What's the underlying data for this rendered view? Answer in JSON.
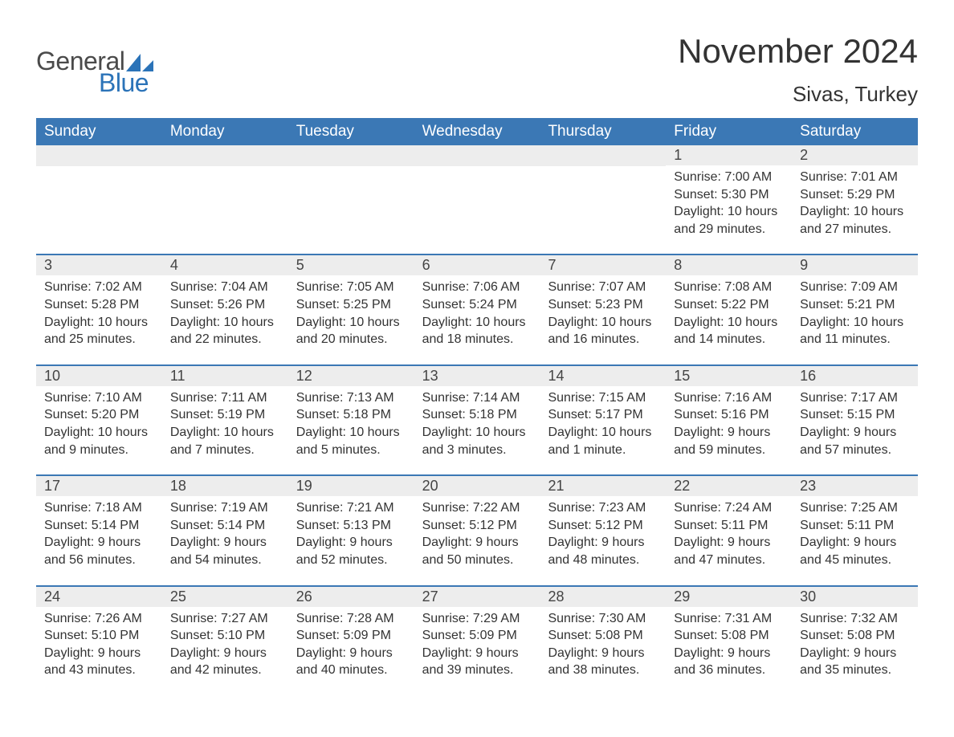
{
  "brand": {
    "word1": "General",
    "word2": "Blue",
    "sail_color": "#2b73b8"
  },
  "title": "November 2024",
  "location": "Sivas, Turkey",
  "colors": {
    "header_bg": "#3b78b5",
    "header_text": "#ffffff",
    "daynum_bg": "#ededed",
    "row_border": "#3b78b5",
    "text": "#333333",
    "background": "#ffffff"
  },
  "typography": {
    "title_fontsize": 42,
    "location_fontsize": 26,
    "weekday_fontsize": 19,
    "daynum_fontsize": 18,
    "body_fontsize": 16
  },
  "weekdays": [
    "Sunday",
    "Monday",
    "Tuesday",
    "Wednesday",
    "Thursday",
    "Friday",
    "Saturday"
  ],
  "weeks": [
    [
      {},
      {},
      {},
      {},
      {},
      {
        "n": "1",
        "sunrise": "Sunrise: 7:00 AM",
        "sunset": "Sunset: 5:30 PM",
        "day1": "Daylight: 10 hours",
        "day2": "and 29 minutes."
      },
      {
        "n": "2",
        "sunrise": "Sunrise: 7:01 AM",
        "sunset": "Sunset: 5:29 PM",
        "day1": "Daylight: 10 hours",
        "day2": "and 27 minutes."
      }
    ],
    [
      {
        "n": "3",
        "sunrise": "Sunrise: 7:02 AM",
        "sunset": "Sunset: 5:28 PM",
        "day1": "Daylight: 10 hours",
        "day2": "and 25 minutes."
      },
      {
        "n": "4",
        "sunrise": "Sunrise: 7:04 AM",
        "sunset": "Sunset: 5:26 PM",
        "day1": "Daylight: 10 hours",
        "day2": "and 22 minutes."
      },
      {
        "n": "5",
        "sunrise": "Sunrise: 7:05 AM",
        "sunset": "Sunset: 5:25 PM",
        "day1": "Daylight: 10 hours",
        "day2": "and 20 minutes."
      },
      {
        "n": "6",
        "sunrise": "Sunrise: 7:06 AM",
        "sunset": "Sunset: 5:24 PM",
        "day1": "Daylight: 10 hours",
        "day2": "and 18 minutes."
      },
      {
        "n": "7",
        "sunrise": "Sunrise: 7:07 AM",
        "sunset": "Sunset: 5:23 PM",
        "day1": "Daylight: 10 hours",
        "day2": "and 16 minutes."
      },
      {
        "n": "8",
        "sunrise": "Sunrise: 7:08 AM",
        "sunset": "Sunset: 5:22 PM",
        "day1": "Daylight: 10 hours",
        "day2": "and 14 minutes."
      },
      {
        "n": "9",
        "sunrise": "Sunrise: 7:09 AM",
        "sunset": "Sunset: 5:21 PM",
        "day1": "Daylight: 10 hours",
        "day2": "and 11 minutes."
      }
    ],
    [
      {
        "n": "10",
        "sunrise": "Sunrise: 7:10 AM",
        "sunset": "Sunset: 5:20 PM",
        "day1": "Daylight: 10 hours",
        "day2": "and 9 minutes."
      },
      {
        "n": "11",
        "sunrise": "Sunrise: 7:11 AM",
        "sunset": "Sunset: 5:19 PM",
        "day1": "Daylight: 10 hours",
        "day2": "and 7 minutes."
      },
      {
        "n": "12",
        "sunrise": "Sunrise: 7:13 AM",
        "sunset": "Sunset: 5:18 PM",
        "day1": "Daylight: 10 hours",
        "day2": "and 5 minutes."
      },
      {
        "n": "13",
        "sunrise": "Sunrise: 7:14 AM",
        "sunset": "Sunset: 5:18 PM",
        "day1": "Daylight: 10 hours",
        "day2": "and 3 minutes."
      },
      {
        "n": "14",
        "sunrise": "Sunrise: 7:15 AM",
        "sunset": "Sunset: 5:17 PM",
        "day1": "Daylight: 10 hours",
        "day2": "and 1 minute."
      },
      {
        "n": "15",
        "sunrise": "Sunrise: 7:16 AM",
        "sunset": "Sunset: 5:16 PM",
        "day1": "Daylight: 9 hours",
        "day2": "and 59 minutes."
      },
      {
        "n": "16",
        "sunrise": "Sunrise: 7:17 AM",
        "sunset": "Sunset: 5:15 PM",
        "day1": "Daylight: 9 hours",
        "day2": "and 57 minutes."
      }
    ],
    [
      {
        "n": "17",
        "sunrise": "Sunrise: 7:18 AM",
        "sunset": "Sunset: 5:14 PM",
        "day1": "Daylight: 9 hours",
        "day2": "and 56 minutes."
      },
      {
        "n": "18",
        "sunrise": "Sunrise: 7:19 AM",
        "sunset": "Sunset: 5:14 PM",
        "day1": "Daylight: 9 hours",
        "day2": "and 54 minutes."
      },
      {
        "n": "19",
        "sunrise": "Sunrise: 7:21 AM",
        "sunset": "Sunset: 5:13 PM",
        "day1": "Daylight: 9 hours",
        "day2": "and 52 minutes."
      },
      {
        "n": "20",
        "sunrise": "Sunrise: 7:22 AM",
        "sunset": "Sunset: 5:12 PM",
        "day1": "Daylight: 9 hours",
        "day2": "and 50 minutes."
      },
      {
        "n": "21",
        "sunrise": "Sunrise: 7:23 AM",
        "sunset": "Sunset: 5:12 PM",
        "day1": "Daylight: 9 hours",
        "day2": "and 48 minutes."
      },
      {
        "n": "22",
        "sunrise": "Sunrise: 7:24 AM",
        "sunset": "Sunset: 5:11 PM",
        "day1": "Daylight: 9 hours",
        "day2": "and 47 minutes."
      },
      {
        "n": "23",
        "sunrise": "Sunrise: 7:25 AM",
        "sunset": "Sunset: 5:11 PM",
        "day1": "Daylight: 9 hours",
        "day2": "and 45 minutes."
      }
    ],
    [
      {
        "n": "24",
        "sunrise": "Sunrise: 7:26 AM",
        "sunset": "Sunset: 5:10 PM",
        "day1": "Daylight: 9 hours",
        "day2": "and 43 minutes."
      },
      {
        "n": "25",
        "sunrise": "Sunrise: 7:27 AM",
        "sunset": "Sunset: 5:10 PM",
        "day1": "Daylight: 9 hours",
        "day2": "and 42 minutes."
      },
      {
        "n": "26",
        "sunrise": "Sunrise: 7:28 AM",
        "sunset": "Sunset: 5:09 PM",
        "day1": "Daylight: 9 hours",
        "day2": "and 40 minutes."
      },
      {
        "n": "27",
        "sunrise": "Sunrise: 7:29 AM",
        "sunset": "Sunset: 5:09 PM",
        "day1": "Daylight: 9 hours",
        "day2": "and 39 minutes."
      },
      {
        "n": "28",
        "sunrise": "Sunrise: 7:30 AM",
        "sunset": "Sunset: 5:08 PM",
        "day1": "Daylight: 9 hours",
        "day2": "and 38 minutes."
      },
      {
        "n": "29",
        "sunrise": "Sunrise: 7:31 AM",
        "sunset": "Sunset: 5:08 PM",
        "day1": "Daylight: 9 hours",
        "day2": "and 36 minutes."
      },
      {
        "n": "30",
        "sunrise": "Sunrise: 7:32 AM",
        "sunset": "Sunset: 5:08 PM",
        "day1": "Daylight: 9 hours",
        "day2": "and 35 minutes."
      }
    ]
  ]
}
